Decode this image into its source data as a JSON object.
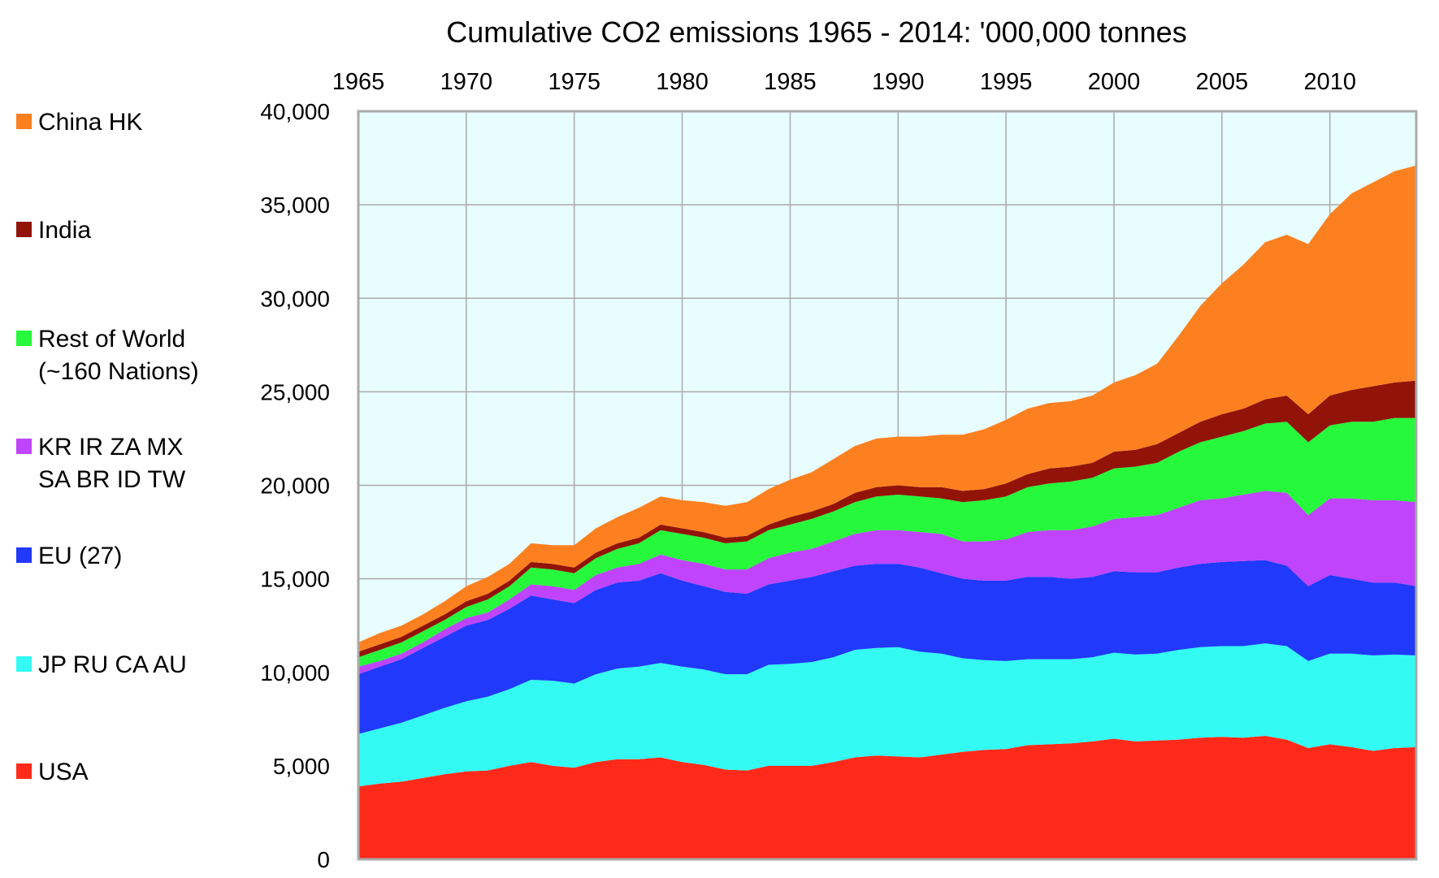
{
  "chart_data": {
    "type": "area",
    "stacked": true,
    "title": "Cumulative CO2 emissions  1965 - 2014:  '000,000 tonnes",
    "xlabel": "",
    "ylabel": "",
    "xlim": [
      1965,
      2014
    ],
    "ylim": [
      0,
      40000
    ],
    "x_ticks": [
      "1965",
      "1970",
      "1975",
      "1980",
      "1985",
      "1990",
      "1995",
      "2000",
      "2005",
      "2010"
    ],
    "y_ticks": [
      "0",
      "5,000",
      "10,000",
      "15,000",
      "20,000",
      "25,000",
      "30,000",
      "35,000",
      "40,000"
    ],
    "grid": true,
    "x_axis_position": "top",
    "legend_position": "left",
    "plot_background": "#e8fdfd",
    "x": [
      1965,
      1966,
      1967,
      1968,
      1969,
      1970,
      1971,
      1972,
      1973,
      1974,
      1975,
      1976,
      1977,
      1978,
      1979,
      1980,
      1981,
      1982,
      1983,
      1984,
      1985,
      1986,
      1987,
      1988,
      1989,
      1990,
      1991,
      1992,
      1993,
      1994,
      1995,
      1996,
      1997,
      1998,
      1999,
      2000,
      2001,
      2002,
      2003,
      2004,
      2005,
      2006,
      2007,
      2008,
      2009,
      2010,
      2011,
      2012,
      2013,
      2014
    ],
    "series": [
      {
        "name": "USA",
        "label_lines": [
          "USA"
        ],
        "color": "#ff2a1a",
        "values": [
          3900,
          4050,
          4150,
          4350,
          4550,
          4700,
          4750,
          5000,
          5200,
          5000,
          4900,
          5200,
          5350,
          5350,
          5450,
          5200,
          5050,
          4800,
          4750,
          5000,
          5000,
          5000,
          5200,
          5450,
          5550,
          5500,
          5450,
          5600,
          5750,
          5850,
          5900,
          6100,
          6150,
          6200,
          6300,
          6450,
          6300,
          6350,
          6400,
          6500,
          6550,
          6500,
          6600,
          6400,
          5950,
          6150,
          6000,
          5800,
          5950,
          6000
        ]
      },
      {
        "name": "JP RU CA AU",
        "label_lines": [
          "JP RU CA AU"
        ],
        "color": "#33fbf3",
        "values": [
          2800,
          2950,
          3150,
          3350,
          3550,
          3750,
          3950,
          4100,
          4400,
          4550,
          4500,
          4700,
          4850,
          4950,
          5050,
          5100,
          5100,
          5100,
          5150,
          5400,
          5450,
          5550,
          5600,
          5750,
          5750,
          5850,
          5650,
          5400,
          5000,
          4800,
          4700,
          4600,
          4550,
          4500,
          4500,
          4600,
          4650,
          4650,
          4800,
          4850,
          4850,
          4900,
          4950,
          5000,
          4650,
          4850,
          5000,
          5100,
          5000,
          4900
        ]
      },
      {
        "name": "EU (27)",
        "label_lines": [
          "EU (27)"
        ],
        "color": "#2039fb",
        "values": [
          3200,
          3300,
          3400,
          3600,
          3800,
          4050,
          4100,
          4300,
          4500,
          4350,
          4300,
          4500,
          4600,
          4600,
          4800,
          4600,
          4450,
          4400,
          4300,
          4300,
          4450,
          4550,
          4600,
          4500,
          4500,
          4450,
          4500,
          4300,
          4250,
          4250,
          4300,
          4400,
          4400,
          4300,
          4300,
          4350,
          4400,
          4350,
          4400,
          4450,
          4500,
          4550,
          4450,
          4300,
          4000,
          4200,
          4000,
          3900,
          3850,
          3700
        ]
      },
      {
        "name": "KR IR ZA MX SA BR ID TW",
        "label_lines": [
          "KR IR ZA MX",
          "SA BR ID TW"
        ],
        "color": "#bf44fb",
        "values": [
          400,
          300,
          300,
          300,
          400,
          400,
          400,
          500,
          600,
          700,
          700,
          800,
          800,
          900,
          1000,
          1100,
          1200,
          1200,
          1300,
          1400,
          1500,
          1500,
          1600,
          1700,
          1800,
          1800,
          1900,
          2100,
          2000,
          2100,
          2200,
          2400,
          2500,
          2600,
          2700,
          2800,
          2950,
          3050,
          3200,
          3400,
          3400,
          3550,
          3700,
          3900,
          3800,
          4100,
          4300,
          4400,
          4400,
          4500
        ]
      },
      {
        "name": "Rest of World (~160 Nations)",
        "label_lines": [
          "Rest of World",
          "(~160 Nations)"
        ],
        "color": "#26f83b",
        "values": [
          500,
          600,
          600,
          600,
          500,
          600,
          700,
          700,
          900,
          900,
          900,
          900,
          1000,
          1100,
          1300,
          1400,
          1400,
          1400,
          1500,
          1500,
          1500,
          1600,
          1600,
          1700,
          1800,
          1900,
          1900,
          1900,
          2100,
          2200,
          2300,
          2400,
          2500,
          2600,
          2600,
          2700,
          2700,
          2800,
          3000,
          3100,
          3300,
          3400,
          3600,
          3800,
          3900,
          3900,
          4100,
          4200,
          4400,
          4500
        ]
      },
      {
        "name": "India",
        "label_lines": [
          "India"
        ],
        "color": "#921409",
        "values": [
          300,
          300,
          300,
          300,
          300,
          300,
          300,
          300,
          300,
          300,
          300,
          300,
          300,
          300,
          300,
          300,
          300,
          300,
          300,
          300,
          400,
          400,
          400,
          500,
          500,
          500,
          500,
          600,
          600,
          600,
          700,
          700,
          800,
          800,
          800,
          900,
          900,
          1000,
          1000,
          1100,
          1200,
          1200,
          1300,
          1400,
          1500,
          1600,
          1700,
          1900,
          1900,
          2000
        ]
      },
      {
        "name": "China HK",
        "label_lines": [
          "China HK"
        ],
        "color": "#fd8020",
        "values": [
          500,
          600,
          600,
          600,
          700,
          800,
          900,
          900,
          1000,
          1000,
          1200,
          1300,
          1400,
          1600,
          1500,
          1500,
          1600,
          1700,
          1800,
          1900,
          2000,
          2100,
          2400,
          2500,
          2600,
          2600,
          2700,
          2800,
          3000,
          3200,
          3400,
          3500,
          3500,
          3500,
          3600,
          3700,
          4000,
          4300,
          5200,
          6200,
          7000,
          7700,
          8400,
          8600,
          9100,
          9700,
          10500,
          10900,
          11300,
          11500
        ]
      }
    ]
  }
}
